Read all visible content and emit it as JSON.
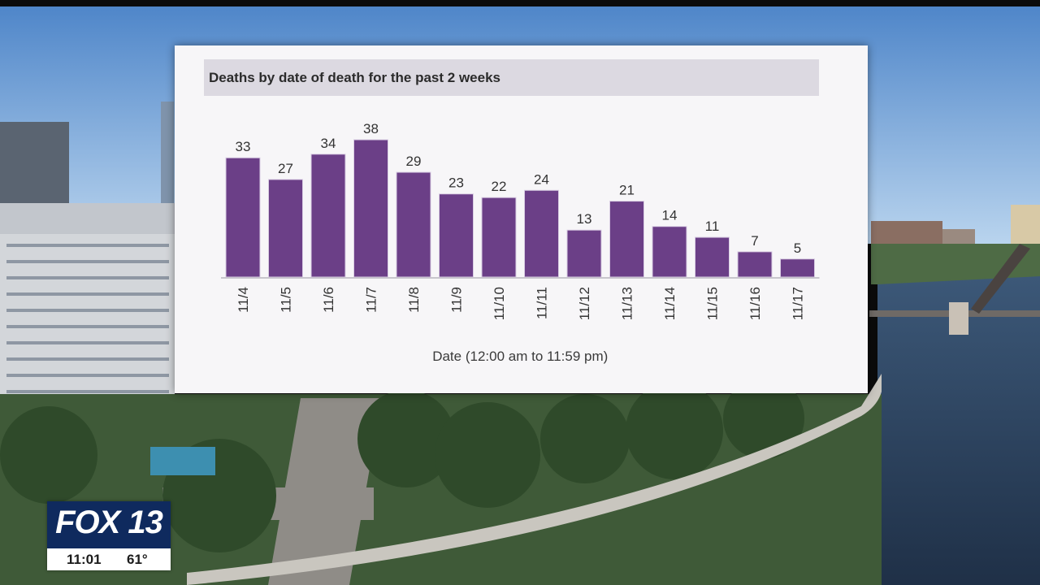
{
  "chart_data": {
    "type": "bar",
    "title": "Deaths by date of death for the past 2 weeks",
    "xlabel": "Date (12:00 am to 11:59 pm)",
    "ylabel": "",
    "categories": [
      "11/4",
      "11/5",
      "11/6",
      "11/7",
      "11/8",
      "11/9",
      "11/10",
      "11/11",
      "11/12",
      "11/13",
      "11/14",
      "11/15",
      "11/16",
      "11/17"
    ],
    "values": [
      33,
      27,
      34,
      38,
      29,
      23,
      22,
      24,
      13,
      21,
      14,
      11,
      7,
      5
    ],
    "ylim": [
      0,
      38
    ],
    "grid": false,
    "legend": "none",
    "bar_color": "#6b3f87"
  },
  "broadcast": {
    "station": "FOX 13",
    "time": "11:01",
    "temperature": "61°",
    "brand_color": "#0f2a5e"
  }
}
